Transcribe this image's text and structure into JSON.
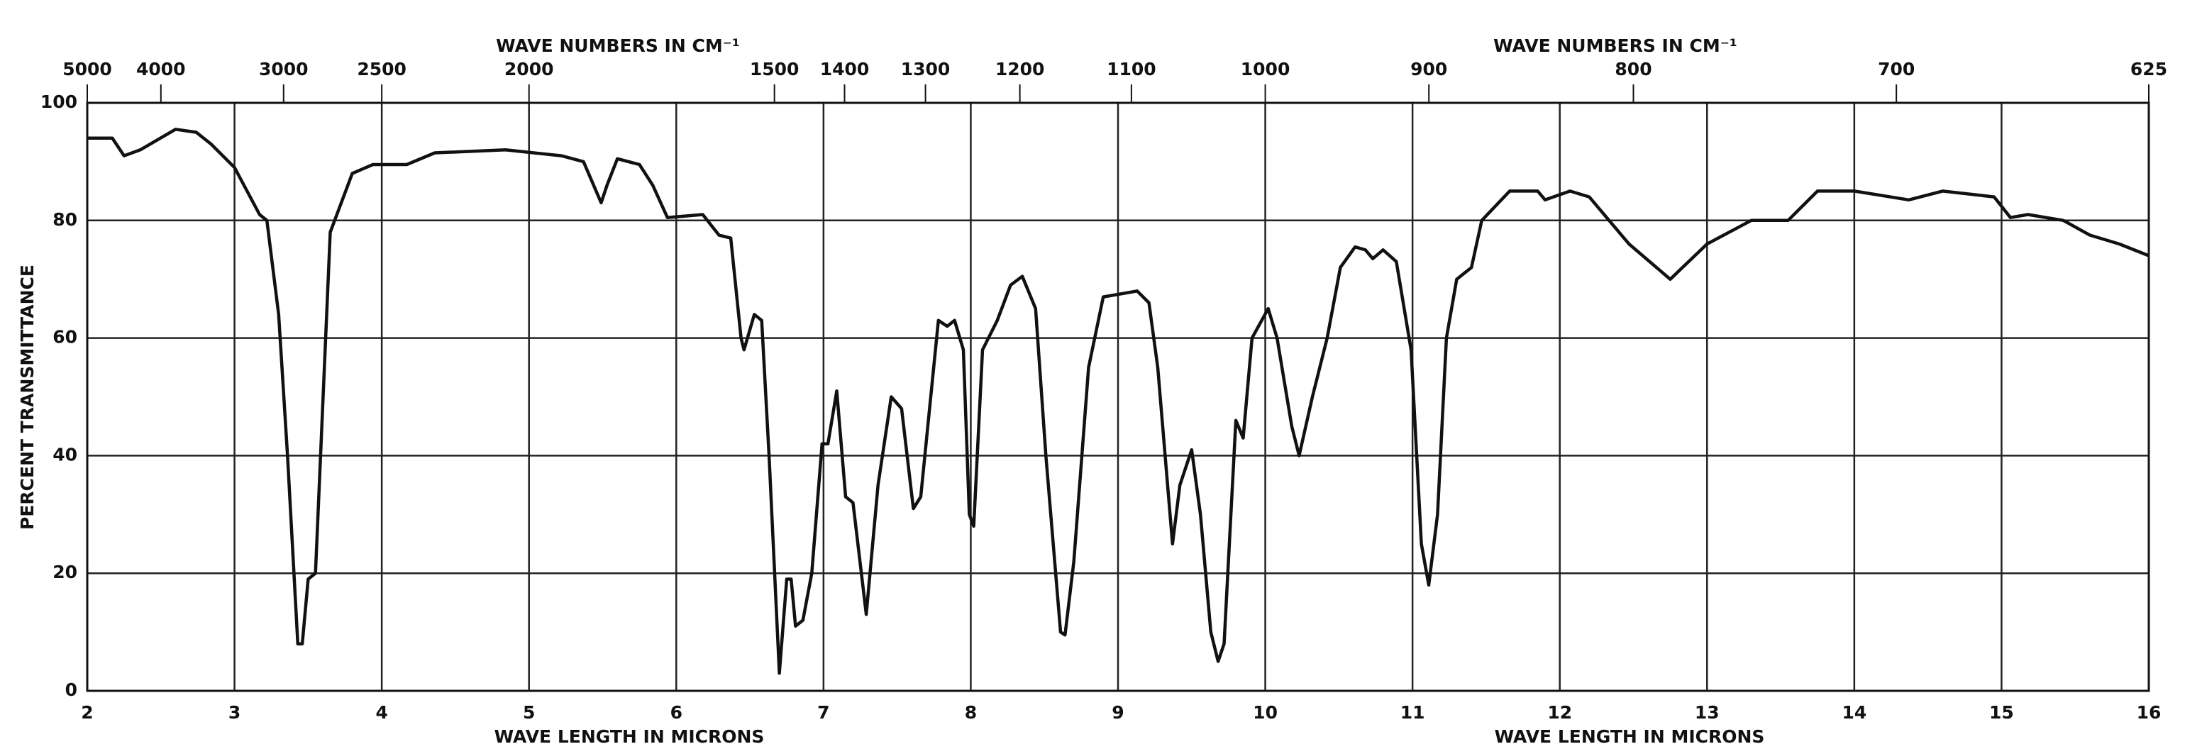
{
  "chart_data": {
    "type": "line",
    "x2label": "WAVE NUMBERS IN CM⁻¹",
    "xlabel": "WAVE LENGTH IN MICRONS",
    "ylabel": "PERCENT TRANSMITTANCE",
    "xlim": [
      2,
      16
    ],
    "xticks": [
      2,
      3,
      4,
      5,
      6,
      7,
      8,
      9,
      10,
      11,
      12,
      13,
      14,
      15,
      16
    ],
    "x2lim": [
      5000,
      625
    ],
    "x2scale": "reciprocal",
    "x2ticks": [
      5000,
      4000,
      3000,
      2500,
      2000,
      1500,
      1400,
      1300,
      1200,
      1100,
      1000,
      900,
      800,
      700,
      625
    ],
    "ylim": [
      0,
      100
    ],
    "yticks": [
      0,
      20,
      40,
      60,
      80,
      100
    ],
    "grid": true,
    "color": "#111111",
    "x": [
      2.0,
      2.17,
      2.25,
      2.36,
      2.6,
      2.74,
      2.84,
      3.0,
      3.17,
      3.22,
      3.3,
      3.36,
      3.43,
      3.46,
      3.5,
      3.55,
      3.65,
      3.8,
      3.94,
      4.17,
      4.36,
      4.84,
      5.22,
      5.37,
      5.49,
      5.53,
      5.6,
      5.75,
      5.84,
      5.94,
      6.18,
      6.29,
      6.37,
      6.44,
      6.46,
      6.53,
      6.58,
      6.63,
      6.7,
      6.75,
      6.78,
      6.81,
      6.86,
      6.92,
      6.99,
      7.03,
      7.09,
      7.15,
      7.2,
      7.29,
      7.37,
      7.46,
      7.53,
      7.61,
      7.66,
      7.78,
      7.84,
      7.89,
      7.95,
      7.99,
      8.02,
      8.08,
      8.18,
      8.27,
      8.35,
      8.44,
      8.51,
      8.61,
      8.64,
      8.7,
      8.8,
      8.9,
      9.13,
      9.21,
      9.27,
      9.37,
      9.42,
      9.5,
      9.56,
      9.63,
      9.68,
      9.72,
      9.8,
      9.85,
      9.91,
      10.02,
      10.08,
      10.18,
      10.23,
      10.32,
      10.42,
      10.51,
      10.61,
      10.68,
      10.73,
      10.8,
      10.89,
      10.99,
      11.06,
      11.11,
      11.17,
      11.23,
      11.3,
      11.4,
      11.47,
      11.66,
      11.85,
      11.9,
      12.07,
      12.2,
      12.47,
      12.75,
      13.0,
      13.3,
      13.55,
      13.75,
      14.0,
      14.37,
      14.6,
      14.95,
      15.06,
      15.18,
      15.42,
      15.6,
      15.8,
      16.0
    ],
    "values": [
      94,
      94,
      91,
      92,
      95.5,
      95,
      93,
      89,
      81,
      80,
      64,
      40,
      8,
      8,
      19,
      20,
      78,
      88,
      89.5,
      89.5,
      91.5,
      92,
      91,
      90,
      83,
      86,
      90.5,
      89.5,
      86,
      80.5,
      81,
      77.5,
      77,
      60,
      58,
      64,
      63,
      40,
      3,
      19,
      19,
      11,
      12,
      20,
      42,
      42,
      51,
      33,
      32,
      13,
      35,
      50,
      48,
      31,
      33,
      63,
      62,
      63,
      58,
      30,
      28,
      58,
      63,
      69,
      70.5,
      65,
      40,
      10,
      9.5,
      22,
      55,
      67,
      68,
      66,
      55,
      25,
      35,
      41,
      30,
      10,
      5,
      8,
      46,
      43,
      60,
      65,
      60,
      45,
      40,
      50,
      60,
      72,
      75.5,
      75,
      73.5,
      75,
      73,
      58,
      25,
      18,
      30,
      60,
      70,
      72,
      80,
      85,
      85,
      83.5,
      85,
      84,
      76,
      70,
      76,
      80,
      80,
      85,
      85,
      83.5,
      85,
      84,
      80.5,
      81,
      80,
      77.5,
      76,
      74
    ]
  }
}
